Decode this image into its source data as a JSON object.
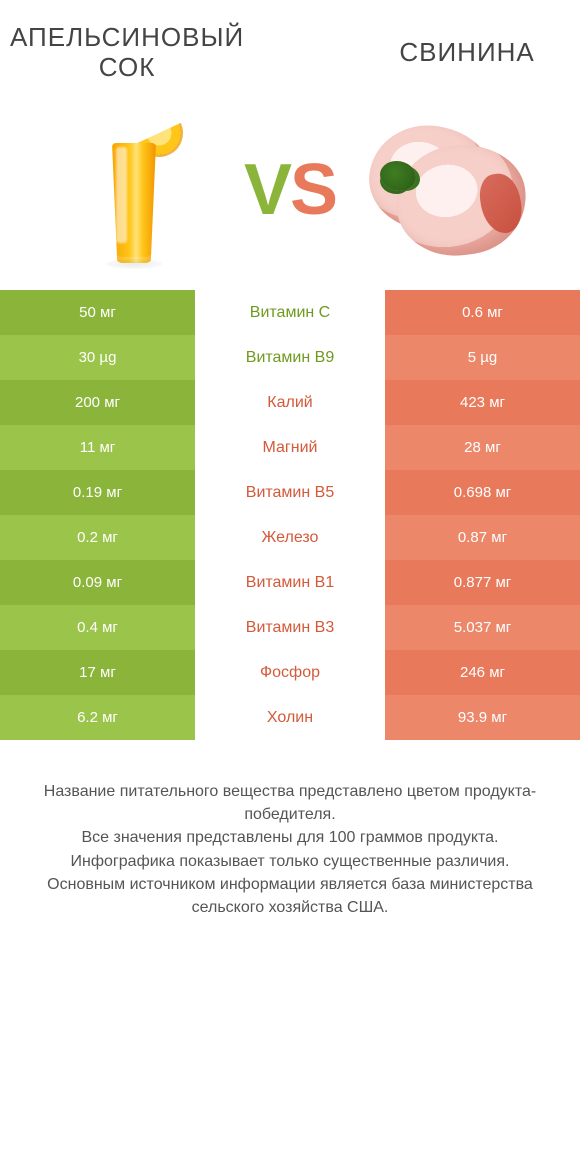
{
  "header": {
    "left_title": "АПЕЛЬСИНОВЫЙ СОК",
    "right_title": "СВИНИНА"
  },
  "vs": {
    "v": "V",
    "s": "S"
  },
  "colors": {
    "green_a": "#8bb53a",
    "green_b": "#9bc44a",
    "coral_a": "#e8795a",
    "coral_b": "#ec876a",
    "mid_green": "#6f9a1e",
    "mid_coral": "#d45a3a"
  },
  "rows": [
    {
      "left": "50 мг",
      "mid": "Витамин C",
      "right": "0.6 мг",
      "winner": "left"
    },
    {
      "left": "30 µg",
      "mid": "Витамин B9",
      "right": "5 µg",
      "winner": "left"
    },
    {
      "left": "200 мг",
      "mid": "Калий",
      "right": "423 мг",
      "winner": "right"
    },
    {
      "left": "11 мг",
      "mid": "Магний",
      "right": "28 мг",
      "winner": "right"
    },
    {
      "left": "0.19 мг",
      "mid": "Витамин B5",
      "right": "0.698 мг",
      "winner": "right"
    },
    {
      "left": "0.2 мг",
      "mid": "Железо",
      "right": "0.87 мг",
      "winner": "right"
    },
    {
      "left": "0.09 мг",
      "mid": "Витамин B1",
      "right": "0.877 мг",
      "winner": "right"
    },
    {
      "left": "0.4 мг",
      "mid": "Витамин B3",
      "right": "5.037 мг",
      "winner": "right"
    },
    {
      "left": "17 мг",
      "mid": "Фосфор",
      "right": "246 мг",
      "winner": "right"
    },
    {
      "left": "6.2 мг",
      "mid": "Холин",
      "right": "93.9 мг",
      "winner": "right"
    }
  ],
  "footer": {
    "line1": "Название питательного вещества представлено цветом продукта-победителя.",
    "line2": "Все значения представлены для 100 граммов продукта.",
    "line3": "Инфографика показывает только существенные различия.",
    "line4": "Основным источником информации является база министерства сельского хозяйства США."
  }
}
